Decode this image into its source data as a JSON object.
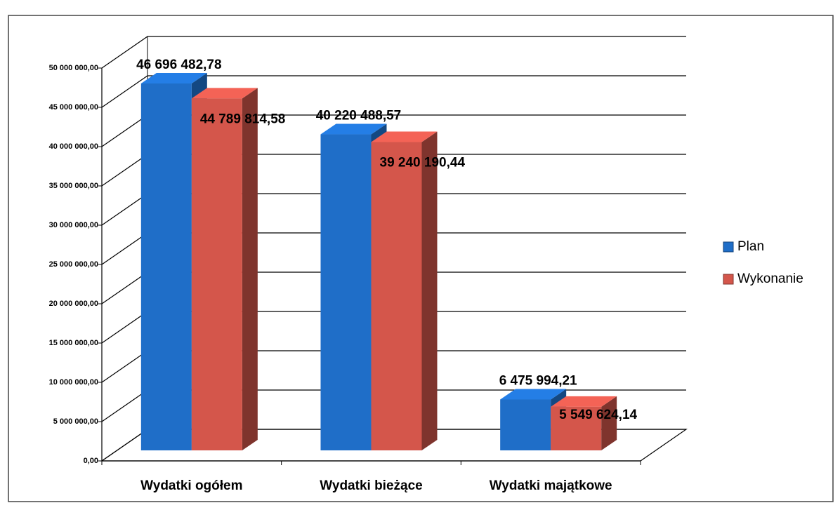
{
  "chart_data": {
    "type": "bar3d",
    "categories": [
      "Wydatki ogółem",
      "Wydatki bieżące",
      "Wydatki majątkowe"
    ],
    "series": [
      {
        "name": "Plan",
        "color": "#1f6ec8",
        "values": [
          46696482.78,
          40220488.57,
          6475994.21
        ],
        "value_labels": [
          "46 696 482,78",
          "40 220 488,57",
          "6 475 994,21"
        ]
      },
      {
        "name": "Wykonanie",
        "color": "#d4564b",
        "values": [
          44789814.58,
          39240190.44,
          5549624.14
        ],
        "value_labels": [
          "44 789 814,58",
          "39 240 190,44",
          "5 549 624,14"
        ]
      }
    ],
    "ylim": [
      0,
      50000000
    ],
    "yticks": [
      {
        "value": 0,
        "label": "0,00"
      },
      {
        "value": 5000000,
        "label": "5 000 000,00"
      },
      {
        "value": 10000000,
        "label": "10 000 000,00"
      },
      {
        "value": 15000000,
        "label": "15 000 000,00"
      },
      {
        "value": 20000000,
        "label": "20 000 000,00"
      },
      {
        "value": 25000000,
        "label": "25 000 000,00"
      },
      {
        "value": 30000000,
        "label": "30 000 000,00"
      },
      {
        "value": 35000000,
        "label": "35 000 000,00"
      },
      {
        "value": 40000000,
        "label": "40 000 000,00"
      },
      {
        "value": 45000000,
        "label": "45 000 000,00"
      },
      {
        "value": 50000000,
        "label": "50 000 000,00"
      }
    ],
    "grid": true,
    "legend": "right"
  }
}
